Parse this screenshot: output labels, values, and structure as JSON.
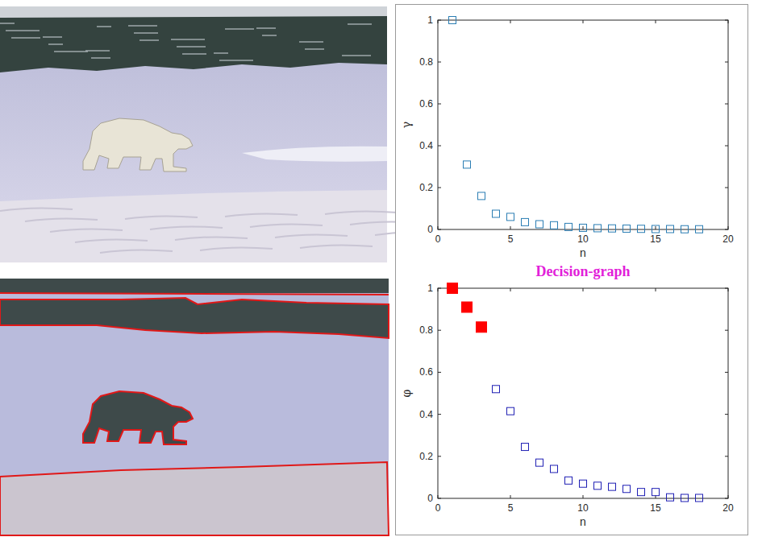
{
  "chart_data": [
    {
      "type": "scatter",
      "x_label": "n",
      "y_label": "γ",
      "xlim": [
        0,
        20
      ],
      "xticks": [
        0,
        5,
        10,
        15,
        20
      ],
      "ylim": [
        0,
        1
      ],
      "yticks": [
        0,
        0.2,
        0.4,
        0.6,
        0.8,
        1
      ],
      "grid": false,
      "series": [
        {
          "color": "#2a7db3",
          "marker": "square",
          "x": [
            1,
            2,
            3,
            4,
            5,
            6,
            7,
            8,
            9,
            10,
            11,
            12,
            13,
            14,
            15,
            16,
            17,
            18
          ],
          "values": [
            1,
            0.31,
            0.16,
            0.075,
            0.06,
            0.035,
            0.025,
            0.02,
            0.012,
            0.008,
            0.006,
            0.005,
            0.004,
            0.003,
            0.002,
            0.002,
            0.001,
            0.001
          ]
        }
      ]
    },
    {
      "type": "scatter",
      "title": "Decision-graph",
      "x_label": "n",
      "y_label": "φ",
      "xlim": [
        0,
        20
      ],
      "xticks": [
        0,
        5,
        10,
        15,
        20
      ],
      "ylim": [
        0,
        1
      ],
      "yticks": [
        0,
        0.2,
        0.4,
        0.6,
        0.8,
        1
      ],
      "grid": false,
      "series": [
        {
          "color": "#ff0000",
          "marker": "filled-square",
          "x": [
            1,
            2,
            3
          ],
          "values": [
            1,
            0.91,
            0.815
          ]
        },
        {
          "color": "#1f1fb4",
          "marker": "square",
          "x": [
            4,
            5,
            6,
            7,
            8,
            9,
            10,
            11,
            12,
            13,
            14,
            15,
            16,
            17,
            18
          ],
          "values": [
            0.52,
            0.415,
            0.245,
            0.17,
            0.14,
            0.085,
            0.07,
            0.06,
            0.055,
            0.045,
            0.03,
            0.03,
            0.005,
            0.002,
            0.002
          ]
        }
      ]
    }
  ]
}
